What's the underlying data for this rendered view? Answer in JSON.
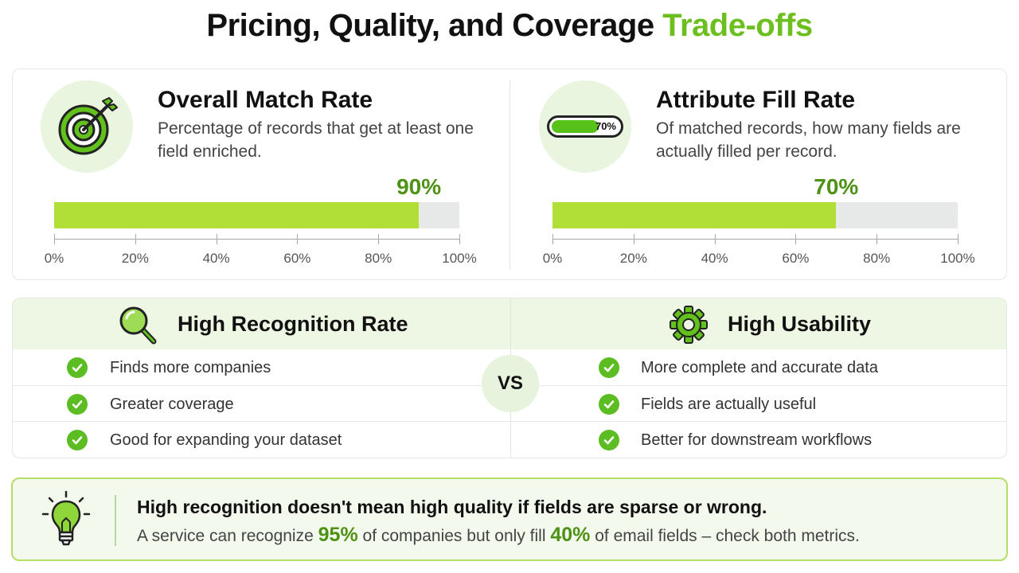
{
  "title": {
    "main": "Pricing, Quality, and Coverage",
    "accent": "Trade-offs"
  },
  "colors": {
    "accent": "#6cbf1f",
    "bar_fill": "#b2df37",
    "bar_track": "#e7e8e8",
    "value_text": "#4d9214",
    "check": "#5bbd22"
  },
  "metrics": {
    "match_rate": {
      "icon": "target-icon",
      "title": "Overall Match Rate",
      "description": "Percentage of records that get at least one field enriched.",
      "value": 90,
      "value_label": "90%"
    },
    "fill_rate": {
      "icon": "battery-icon",
      "icon_label": "70%",
      "title": "Attribute Fill Rate",
      "description": "Of matched records, how many fields are actually filled per record.",
      "value": 70,
      "value_label": "70%"
    },
    "axis_ticks": [
      "0%",
      "20%",
      "40%",
      "60%",
      "80%",
      "100%"
    ]
  },
  "comparison": {
    "left": {
      "icon": "magnifier-icon",
      "title": "High Recognition Rate",
      "items": [
        "Finds more companies",
        "Greater coverage",
        "Good for expanding your dataset"
      ]
    },
    "vs_label": "VS",
    "right": {
      "icon": "gear-icon",
      "title": "High Usability",
      "items": [
        "More complete and accurate data",
        "Fields are actually useful",
        "Better for downstream workflows"
      ]
    }
  },
  "insight": {
    "icon": "lightbulb-icon",
    "headline": "High recognition doesn't mean high quality if fields are sparse or wrong.",
    "body_pre": "A service can recognize",
    "num1": "95%",
    "body_mid": "of companies but only fill",
    "num2": "40%",
    "body_post": "of email fields – check both metrics."
  }
}
